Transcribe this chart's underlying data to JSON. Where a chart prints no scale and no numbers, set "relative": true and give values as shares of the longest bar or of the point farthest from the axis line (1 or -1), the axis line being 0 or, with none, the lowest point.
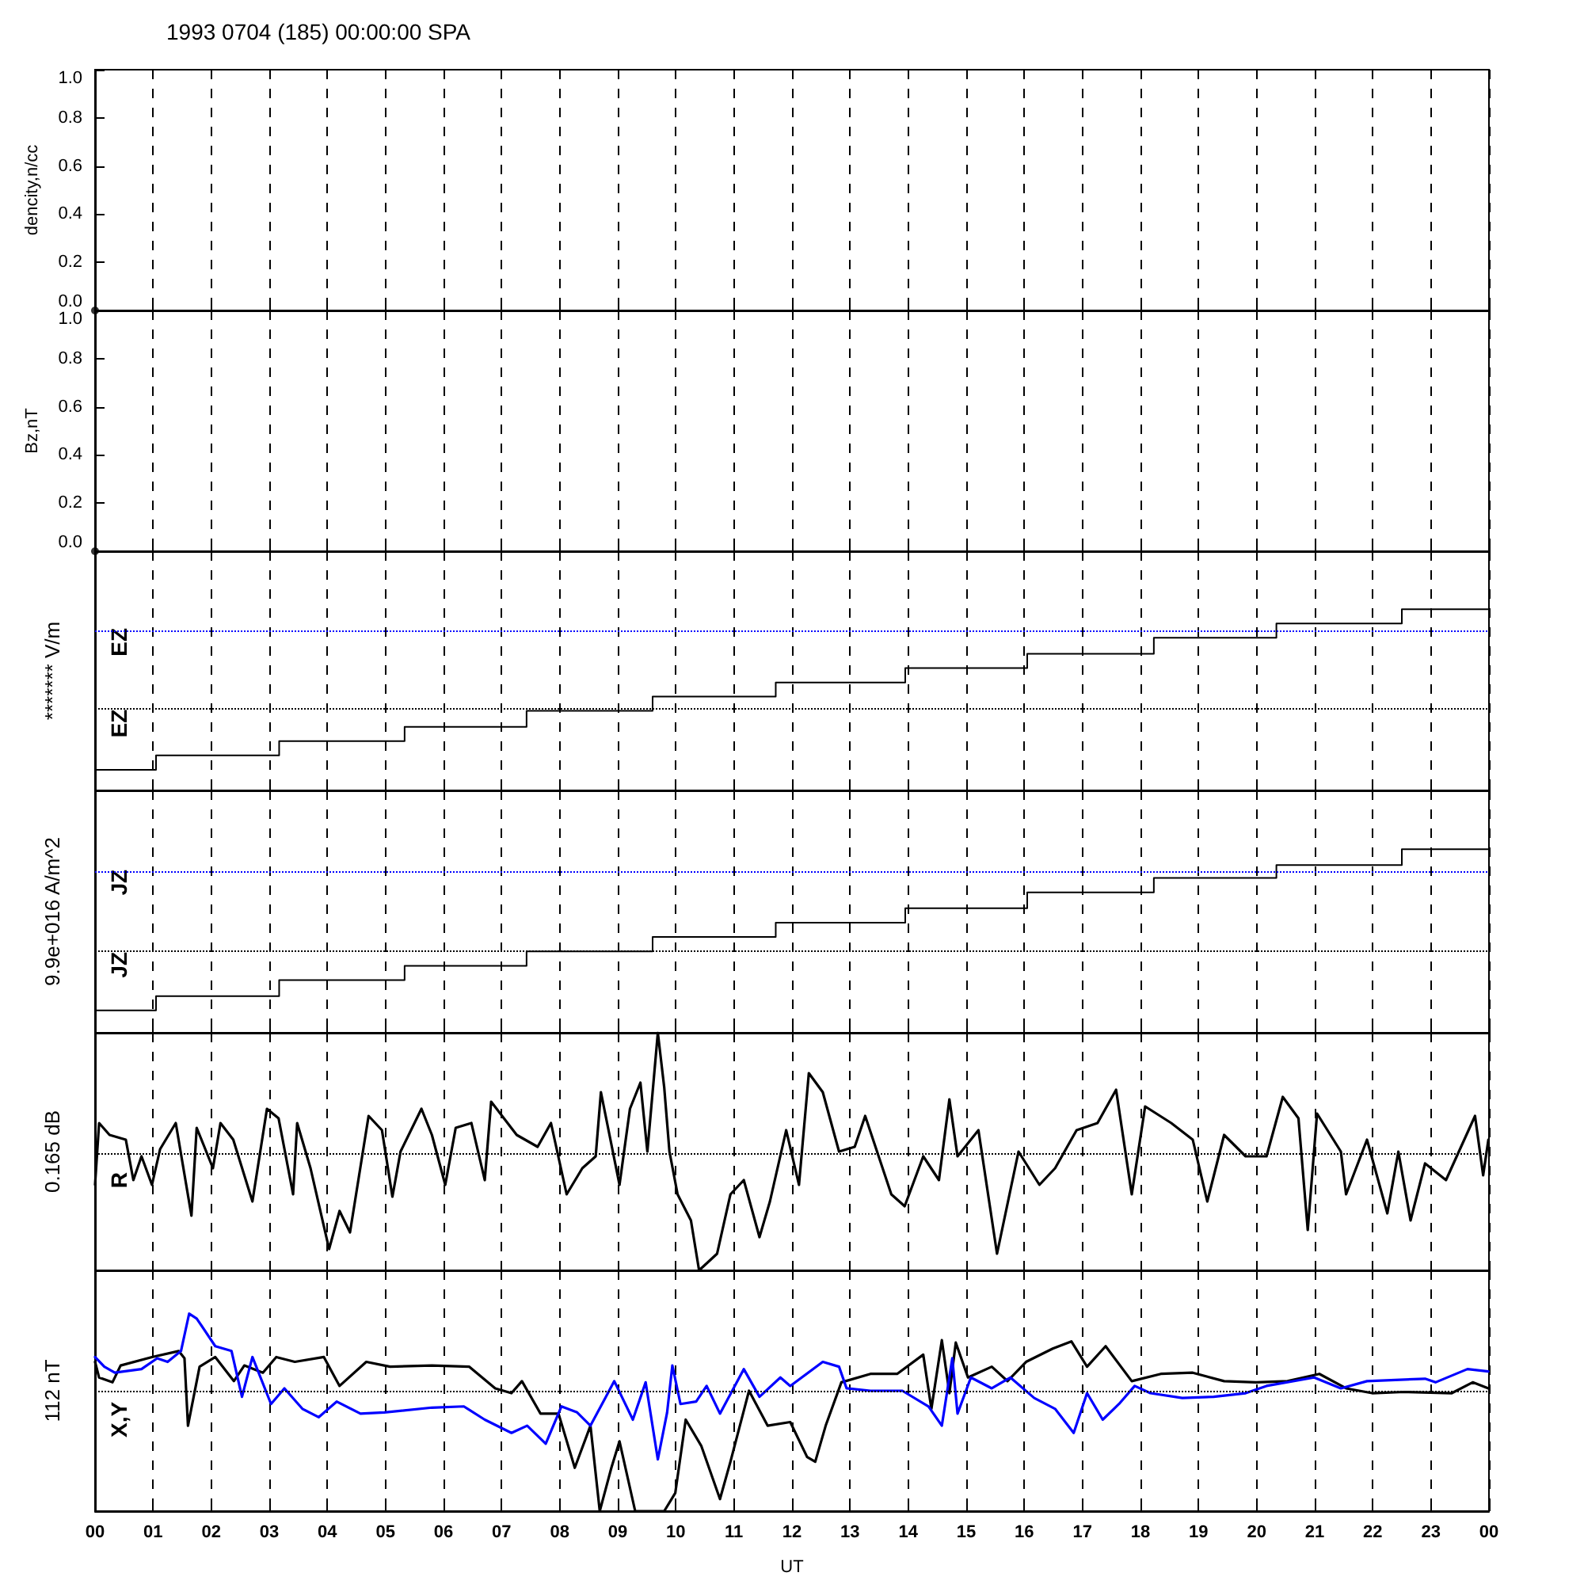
{
  "chart_data": [
    {
      "type": "scatter",
      "title": "1993 0704 (185) 00:00:00 SPA",
      "ylabel": "dencity,n/cc",
      "marker": "circle",
      "x": [
        0
      ],
      "values": [
        0
      ],
      "xlim": [
        0,
        24
      ],
      "xticks": [
        0,
        1,
        2,
        3,
        4,
        5,
        6,
        7,
        8,
        9,
        10,
        11,
        12,
        13,
        14,
        15,
        16,
        17,
        18,
        19,
        20,
        21,
        22,
        23,
        24
      ],
      "ylim": [
        0,
        1
      ],
      "yticks": [
        {
          "value": 0,
          "label": "0.0"
        },
        {
          "value": 0.2,
          "label": "0.2"
        },
        {
          "value": 0.4,
          "label": "0.4"
        },
        {
          "value": 0.6,
          "label": "0.6"
        },
        {
          "value": 0.8,
          "label": "0.8"
        },
        {
          "value": 1,
          "label": "1.0"
        }
      ],
      "grid": "x",
      "tick_labels": "y"
    },
    {
      "type": "scatter",
      "ylabel": "Bz,nT",
      "marker": "circle",
      "x": [
        0
      ],
      "values": [
        0
      ],
      "xlim": [
        0,
        24
      ],
      "xticks": [
        0,
        1,
        2,
        3,
        4,
        5,
        6,
        7,
        8,
        9,
        10,
        11,
        12,
        13,
        14,
        15,
        16,
        17,
        18,
        19,
        20,
        21,
        22,
        23,
        24
      ],
      "ylim": [
        0,
        1
      ],
      "yticks": [
        {
          "value": 0,
          "label": "0.0"
        },
        {
          "value": 0.2,
          "label": "0.2"
        },
        {
          "value": 0.4,
          "label": "0.4"
        },
        {
          "value": 0.6,
          "label": "0.6"
        },
        {
          "value": 0.8,
          "label": "0.8"
        },
        {
          "value": 1,
          "label": "1.0"
        }
      ],
      "grid": "x",
      "tick_labels": "y"
    },
    {
      "type": "step",
      "relative": true,
      "ylabel": "******* V/m",
      "annotations": [
        "EZ",
        "EZ"
      ],
      "series": [
        {
          "color": "#000000",
          "x": [
            0,
            1.05,
            3.17,
            5.33,
            7.43,
            9.6,
            11.72,
            13.95,
            16.05,
            18.23,
            20.34,
            22.5,
            24
          ],
          "values": [
            0.114,
            0.193,
            0.272,
            0.351,
            0.439,
            0.518,
            0.596,
            0.675,
            0.754,
            0.842,
            0.921,
            1,
            1
          ]
        }
      ],
      "ref_lines": [
        {
          "axis": "y",
          "value": 0.877,
          "color": "#0000ff",
          "line_style": "dotted"
        },
        {
          "axis": "y",
          "value": 0.447,
          "color": "#000000",
          "line_style": "dotted"
        }
      ],
      "xlim": [
        0,
        24
      ],
      "xticks": [
        0,
        1,
        2,
        3,
        4,
        5,
        6,
        7,
        8,
        9,
        10,
        11,
        12,
        13,
        14,
        15,
        16,
        17,
        18,
        19,
        20,
        21,
        22,
        23,
        24
      ],
      "grid": "x",
      "tick_labels": false
    },
    {
      "type": "step",
      "relative": true,
      "ylabel": "9.9e+016 A/m^2",
      "annotations": [
        "JZ",
        "JZ"
      ],
      "series": [
        {
          "color": "#000000",
          "x": [
            0,
            1.05,
            3.17,
            5.33,
            7.43,
            9.6,
            11.72,
            13.95,
            16.05,
            18.23,
            20.34,
            22.5,
            24
          ],
          "values": [
            0.122,
            0.2,
            0.287,
            0.365,
            0.443,
            0.522,
            0.6,
            0.678,
            0.765,
            0.843,
            0.913,
            1,
            1
          ]
        }
      ],
      "ref_lines": [
        {
          "axis": "y",
          "value": 0.878,
          "color": "#0000ff",
          "line_style": "dotted"
        },
        {
          "axis": "y",
          "value": 0.452,
          "color": "#000000",
          "line_style": "dotted"
        }
      ],
      "xlim": [
        0,
        24
      ],
      "xticks": [
        0,
        1,
        2,
        3,
        4,
        5,
        6,
        7,
        8,
        9,
        10,
        11,
        12,
        13,
        14,
        15,
        16,
        17,
        18,
        19,
        20,
        21,
        22,
        23,
        24
      ],
      "grid": "x",
      "tick_labels": false
    },
    {
      "type": "line",
      "relative": true,
      "ylabel": "0.165 dB",
      "annotations": [
        "R"
      ],
      "series": [
        {
          "color": "#000000",
          "x": [
            0,
            0.07,
            0.25,
            0.53,
            0.66,
            0.8,
            0.98,
            1.12,
            1.39,
            1.66,
            1.75,
            2.03,
            2.16,
            2.38,
            2.71,
            2.96,
            3.16,
            3.41,
            3.48,
            3.71,
            4.03,
            4.21,
            4.39,
            4.71,
            4.94,
            5.12,
            5.26,
            5.62,
            5.8,
            6.03,
            6.21,
            6.48,
            6.71,
            6.82,
            7.26,
            7.62,
            7.85,
            8.12,
            8.39,
            8.62,
            8.71,
            9.03,
            9.21,
            9.39,
            9.51,
            9.69,
            9.8,
            9.89,
            10.03,
            10.26,
            10.4,
            10.71,
            10.94,
            11.17,
            11.44,
            11.62,
            11.9,
            12.12,
            12.29,
            12.53,
            12.81,
            13.08,
            13.26,
            13.71,
            13.94,
            14.26,
            14.53,
            14.71,
            14.85,
            15.21,
            15.53,
            15.9,
            16.26,
            16.53,
            16.9,
            17.26,
            17.58,
            17.85,
            18.08,
            18.53,
            18.9,
            19.15,
            19.44,
            19.81,
            20.17,
            20.45,
            20.72,
            20.88,
            21.04,
            21.45,
            21.54,
            21.9,
            22.25,
            22.44,
            22.65,
            22.9,
            23.26,
            23.76,
            23.9,
            23.99
          ],
          "values": [
            0.36,
            0.62,
            0.57,
            0.55,
            0.38,
            0.48,
            0.36,
            0.51,
            0.62,
            0.23,
            0.6,
            0.43,
            0.62,
            0.55,
            0.29,
            0.68,
            0.64,
            0.32,
            0.62,
            0.43,
            0.09,
            0.25,
            0.16,
            0.65,
            0.59,
            0.31,
            0.5,
            0.68,
            0.57,
            0.36,
            0.6,
            0.62,
            0.38,
            0.71,
            0.57,
            0.52,
            0.62,
            0.32,
            0.43,
            0.48,
            0.75,
            0.36,
            0.68,
            0.79,
            0.5,
            1,
            0.77,
            0.5,
            0.32,
            0.21,
            0,
            0.07,
            0.32,
            0.38,
            0.14,
            0.29,
            0.59,
            0.36,
            0.83,
            0.75,
            0.5,
            0.52,
            0.65,
            0.32,
            0.27,
            0.48,
            0.38,
            0.72,
            0.48,
            0.59,
            0.07,
            0.5,
            0.36,
            0.43,
            0.59,
            0.62,
            0.76,
            0.32,
            0.69,
            0.62,
            0.55,
            0.29,
            0.57,
            0.48,
            0.48,
            0.73,
            0.64,
            0.17,
            0.66,
            0.5,
            0.32,
            0.55,
            0.24,
            0.5,
            0.21,
            0.45,
            0.38,
            0.65,
            0.4,
            0.55
          ]
        }
      ],
      "ref_lines": [
        {
          "axis": "y",
          "value": 0.49,
          "color": "#000000",
          "line_style": "dotted"
        }
      ],
      "xlim": [
        0,
        24
      ],
      "xticks": [
        0,
        1,
        2,
        3,
        4,
        5,
        6,
        7,
        8,
        9,
        10,
        11,
        12,
        13,
        14,
        15,
        16,
        17,
        18,
        19,
        20,
        21,
        22,
        23,
        24
      ],
      "grid": "x",
      "tick_labels": false
    },
    {
      "type": "line",
      "relative": true,
      "ylabel": "112 nT",
      "xlabel": "UT",
      "annotations": [
        "X,Y"
      ],
      "series": [
        {
          "color": "#000000",
          "x": [
            0,
            0.07,
            0.3,
            0.44,
            0.98,
            1.44,
            1.54,
            1.6,
            1.8,
            2.07,
            2.39,
            2.57,
            2.89,
            3.12,
            3.44,
            3.94,
            4.21,
            4.67,
            5.08,
            5.8,
            6.44,
            6.89,
            7.17,
            7.35,
            7.67,
            7.98,
            8.26,
            8.53,
            8.69,
            8.89,
            9.03,
            9.3,
            9.8,
            9.99,
            10.17,
            10.44,
            10.76,
            10.94,
            11.26,
            11.58,
            11.97,
            12.26,
            12.4,
            12.58,
            12.85,
            13.35,
            13.81,
            14.26,
            14.4,
            14.58,
            14.71,
            14.82,
            15.03,
            15.44,
            15.71,
            16.03,
            16.49,
            16.81,
            17.08,
            17.4,
            17.85,
            18.35,
            18.9,
            19.44,
            19.99,
            20.53,
            21.08,
            21.54,
            21.99,
            22.54,
            23.36,
            23.72,
            23.99
          ],
          "values": [
            0.24,
            0.11,
            0.07,
            0.21,
            0.28,
            0.33,
            0.27,
            -0.29,
            0.2,
            0.28,
            0.08,
            0.21,
            0.15,
            0.28,
            0.24,
            0.28,
            0.04,
            0.24,
            0.2,
            0.21,
            0.2,
            0.02,
            -0.02,
            0.08,
            -0.19,
            -0.19,
            -0.64,
            -0.29,
            -1,
            -0.64,
            -0.42,
            -1,
            -1,
            -0.85,
            -0.24,
            -0.46,
            -0.9,
            -0.59,
            0,
            -0.29,
            -0.26,
            -0.55,
            -0.59,
            -0.29,
            0.07,
            0.14,
            0.14,
            0.3,
            -0.15,
            0.42,
            -0.02,
            0.4,
            0.11,
            0.2,
            0.08,
            0.24,
            0.35,
            0.41,
            0.2,
            0.37,
            0.08,
            0.14,
            0.15,
            0.08,
            0.07,
            0.08,
            0.14,
            0.02,
            -0.02,
            -0.01,
            -0.02,
            0.07,
            0.02
          ]
        },
        {
          "color": "#0000ff",
          "x": [
            0,
            0.16,
            0.34,
            0.8,
            1.07,
            1.25,
            1.48,
            1.62,
            1.75,
            2.07,
            2.35,
            2.53,
            2.71,
            3.03,
            3.26,
            3.57,
            3.85,
            4.16,
            4.57,
            4.98,
            5.8,
            6.35,
            6.71,
            7.17,
            7.44,
            7.76,
            8.03,
            8.3,
            8.53,
            8.94,
            9.26,
            9.48,
            9.69,
            9.85,
            9.94,
            10.08,
            10.35,
            10.53,
            10.76,
            11.17,
            11.44,
            11.8,
            11.97,
            12.53,
            12.81,
            12.94,
            13.35,
            13.9,
            14.35,
            14.58,
            14.76,
            14.85,
            15.08,
            15.44,
            15.76,
            16.17,
            16.53,
            16.85,
            17.08,
            17.35,
            17.63,
            17.9,
            18.17,
            18.72,
            19.26,
            19.81,
            20.17,
            20.99,
            21.45,
            21.9,
            22.9,
            23.08,
            23.63,
            23.99
          ],
          "values": [
            0.28,
            0.2,
            0.15,
            0.18,
            0.27,
            0.24,
            0.33,
            0.64,
            0.6,
            0.37,
            0.33,
            -0.05,
            0.28,
            -0.11,
            0.02,
            -0.15,
            -0.22,
            -0.09,
            -0.19,
            -0.18,
            -0.14,
            -0.13,
            -0.24,
            -0.35,
            -0.29,
            -0.44,
            -0.13,
            -0.18,
            -0.29,
            0.08,
            -0.24,
            0.07,
            -0.57,
            -0.18,
            0.21,
            -0.11,
            -0.09,
            0.04,
            -0.19,
            0.18,
            -0.05,
            0.11,
            0.04,
            0.24,
            0.2,
            0.02,
            0,
            0,
            -0.13,
            -0.29,
            0.27,
            -0.19,
            0.11,
            0.02,
            0.11,
            -0.06,
            -0.15,
            -0.35,
            -0.02,
            -0.24,
            -0.11,
            0.04,
            -0.02,
            -0.06,
            -0.05,
            -0.02,
            0.04,
            0.11,
            0.02,
            0.08,
            0.1,
            0.07,
            0.18,
            0.16
          ]
        }
      ],
      "ref_lines": [
        {
          "axis": "y",
          "value": 0,
          "color": "#000000",
          "line_style": "dotted"
        }
      ],
      "xlim": [
        0,
        24
      ],
      "xticks": [
        {
          "value": 0,
          "label": "00"
        },
        {
          "value": 1,
          "label": "01"
        },
        {
          "value": 2,
          "label": "02"
        },
        {
          "value": 3,
          "label": "03"
        },
        {
          "value": 4,
          "label": "04"
        },
        {
          "value": 5,
          "label": "05"
        },
        {
          "value": 6,
          "label": "06"
        },
        {
          "value": 7,
          "label": "07"
        },
        {
          "value": 8,
          "label": "08"
        },
        {
          "value": 9,
          "label": "09"
        },
        {
          "value": 10,
          "label": "10"
        },
        {
          "value": 11,
          "label": "11"
        },
        {
          "value": 12,
          "label": "12"
        },
        {
          "value": 13,
          "label": "13"
        },
        {
          "value": 14,
          "label": "14"
        },
        {
          "value": 15,
          "label": "15"
        },
        {
          "value": 16,
          "label": "16"
        },
        {
          "value": 17,
          "label": "17"
        },
        {
          "value": 18,
          "label": "18"
        },
        {
          "value": 19,
          "label": "19"
        },
        {
          "value": 20,
          "label": "20"
        },
        {
          "value": 21,
          "label": "21"
        },
        {
          "value": 22,
          "label": "22"
        },
        {
          "value": 23,
          "label": "23"
        },
        {
          "value": 24,
          "label": "00"
        }
      ],
      "grid": "x",
      "tick_labels": "x"
    }
  ]
}
